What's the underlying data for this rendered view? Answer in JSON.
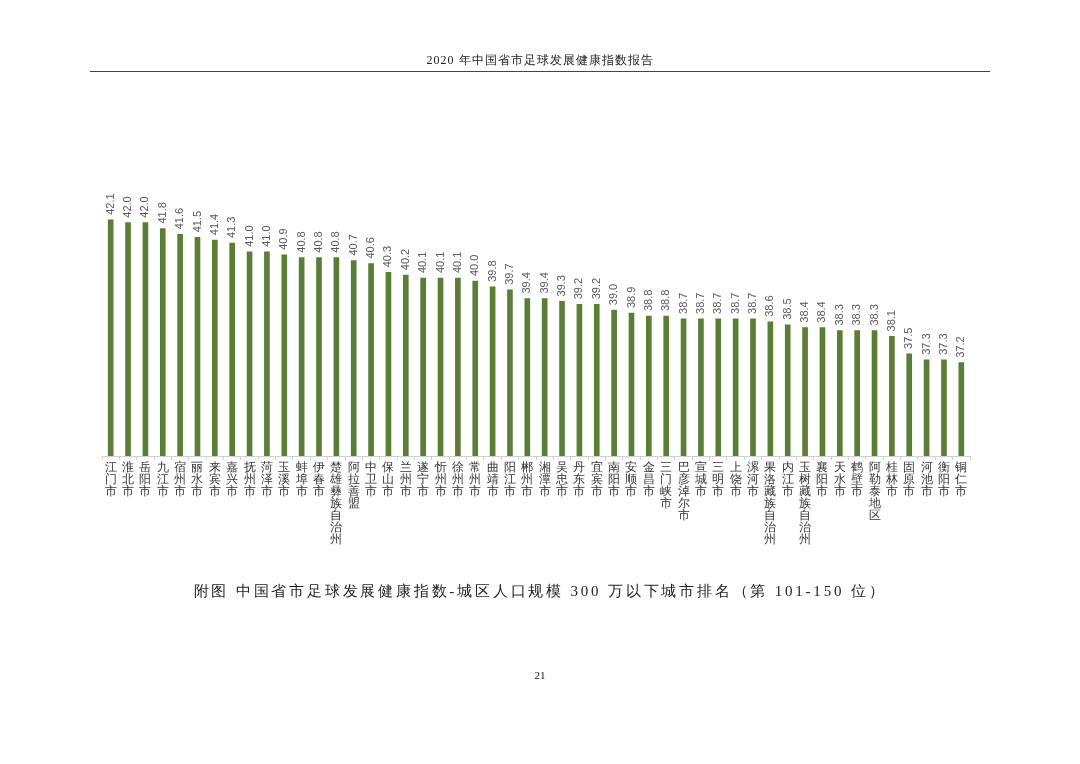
{
  "chart_data": {
    "type": "bar",
    "title": "附图 中国省市足球发展健康指数-城区人口规模 300 万以下城市排名（第 101-150 位）",
    "annotations": [
      "2020 年中国省市足球发展健康指数报告",
      "21"
    ],
    "categories": [
      "江门市",
      "淮北市",
      "岳阳市",
      "九江市",
      "宿州市",
      "丽水市",
      "来宾市",
      "嘉兴市",
      "抚州市",
      "菏泽市",
      "玉溪市",
      "蚌埠市",
      "伊春市",
      "楚雄彝族自治州",
      "阿拉善盟",
      "中卫市",
      "保山市",
      "兰州市",
      "遂宁市",
      "忻州市",
      "徐州市",
      "常州市",
      "曲靖市",
      "阳江市",
      "郴州市",
      "湘潭市",
      "吴忠市",
      "丹东市",
      "宜宾市",
      "南阳市",
      "安顺市",
      "金昌市",
      "三门峡市",
      "巴彦淖尔市",
      "宣城市",
      "三明市",
      "上饶市",
      "漯河市",
      "果洛藏族自治州",
      "内江市",
      "玉树藏族自治州",
      "襄阳市",
      "天水市",
      "鹤壁市",
      "阿勒泰地区",
      "桂林市",
      "固原市",
      "河池市",
      "衡阳市",
      "铜仁市"
    ],
    "values": [
      42.1,
      42.0,
      42.0,
      41.8,
      41.6,
      41.5,
      41.4,
      41.3,
      41.0,
      41.0,
      40.9,
      40.8,
      40.8,
      40.8,
      40.7,
      40.6,
      40.3,
      40.2,
      40.1,
      40.1,
      40.1,
      40.0,
      39.8,
      39.7,
      39.4,
      39.4,
      39.3,
      39.2,
      39.2,
      39.0,
      38.9,
      38.8,
      38.8,
      38.7,
      38.7,
      38.7,
      38.7,
      38.7,
      38.6,
      38.5,
      38.4,
      38.4,
      38.3,
      38.3,
      38.3,
      38.1,
      37.5,
      37.3,
      37.3,
      37.2
    ],
    "value_labels": [
      "42.1",
      "42.0",
      "42.0",
      "41.8",
      "41.6",
      "41.5",
      "41.4",
      "41.3",
      "41.0",
      "41.0",
      "40.9",
      "40.8",
      "40.8",
      "40.8",
      "40.7",
      "40.6",
      "40.3",
      "40.2",
      "40.1",
      "40.1",
      "40.1",
      "40.0",
      "39.8",
      "39.7",
      "39.4",
      "39.4",
      "39.3",
      "39.2",
      "39.2",
      "39.0",
      "38.9",
      "38.8",
      "38.8",
      "38.7",
      "38.7",
      "38.7",
      "38.7",
      "38.7",
      "38.6",
      "38.5",
      "38.4",
      "38.4",
      "38.3",
      "38.3",
      "38.3",
      "38.1",
      "37.5",
      "37.3",
      "37.3",
      "37.2"
    ],
    "color": "#5a7d37"
  }
}
